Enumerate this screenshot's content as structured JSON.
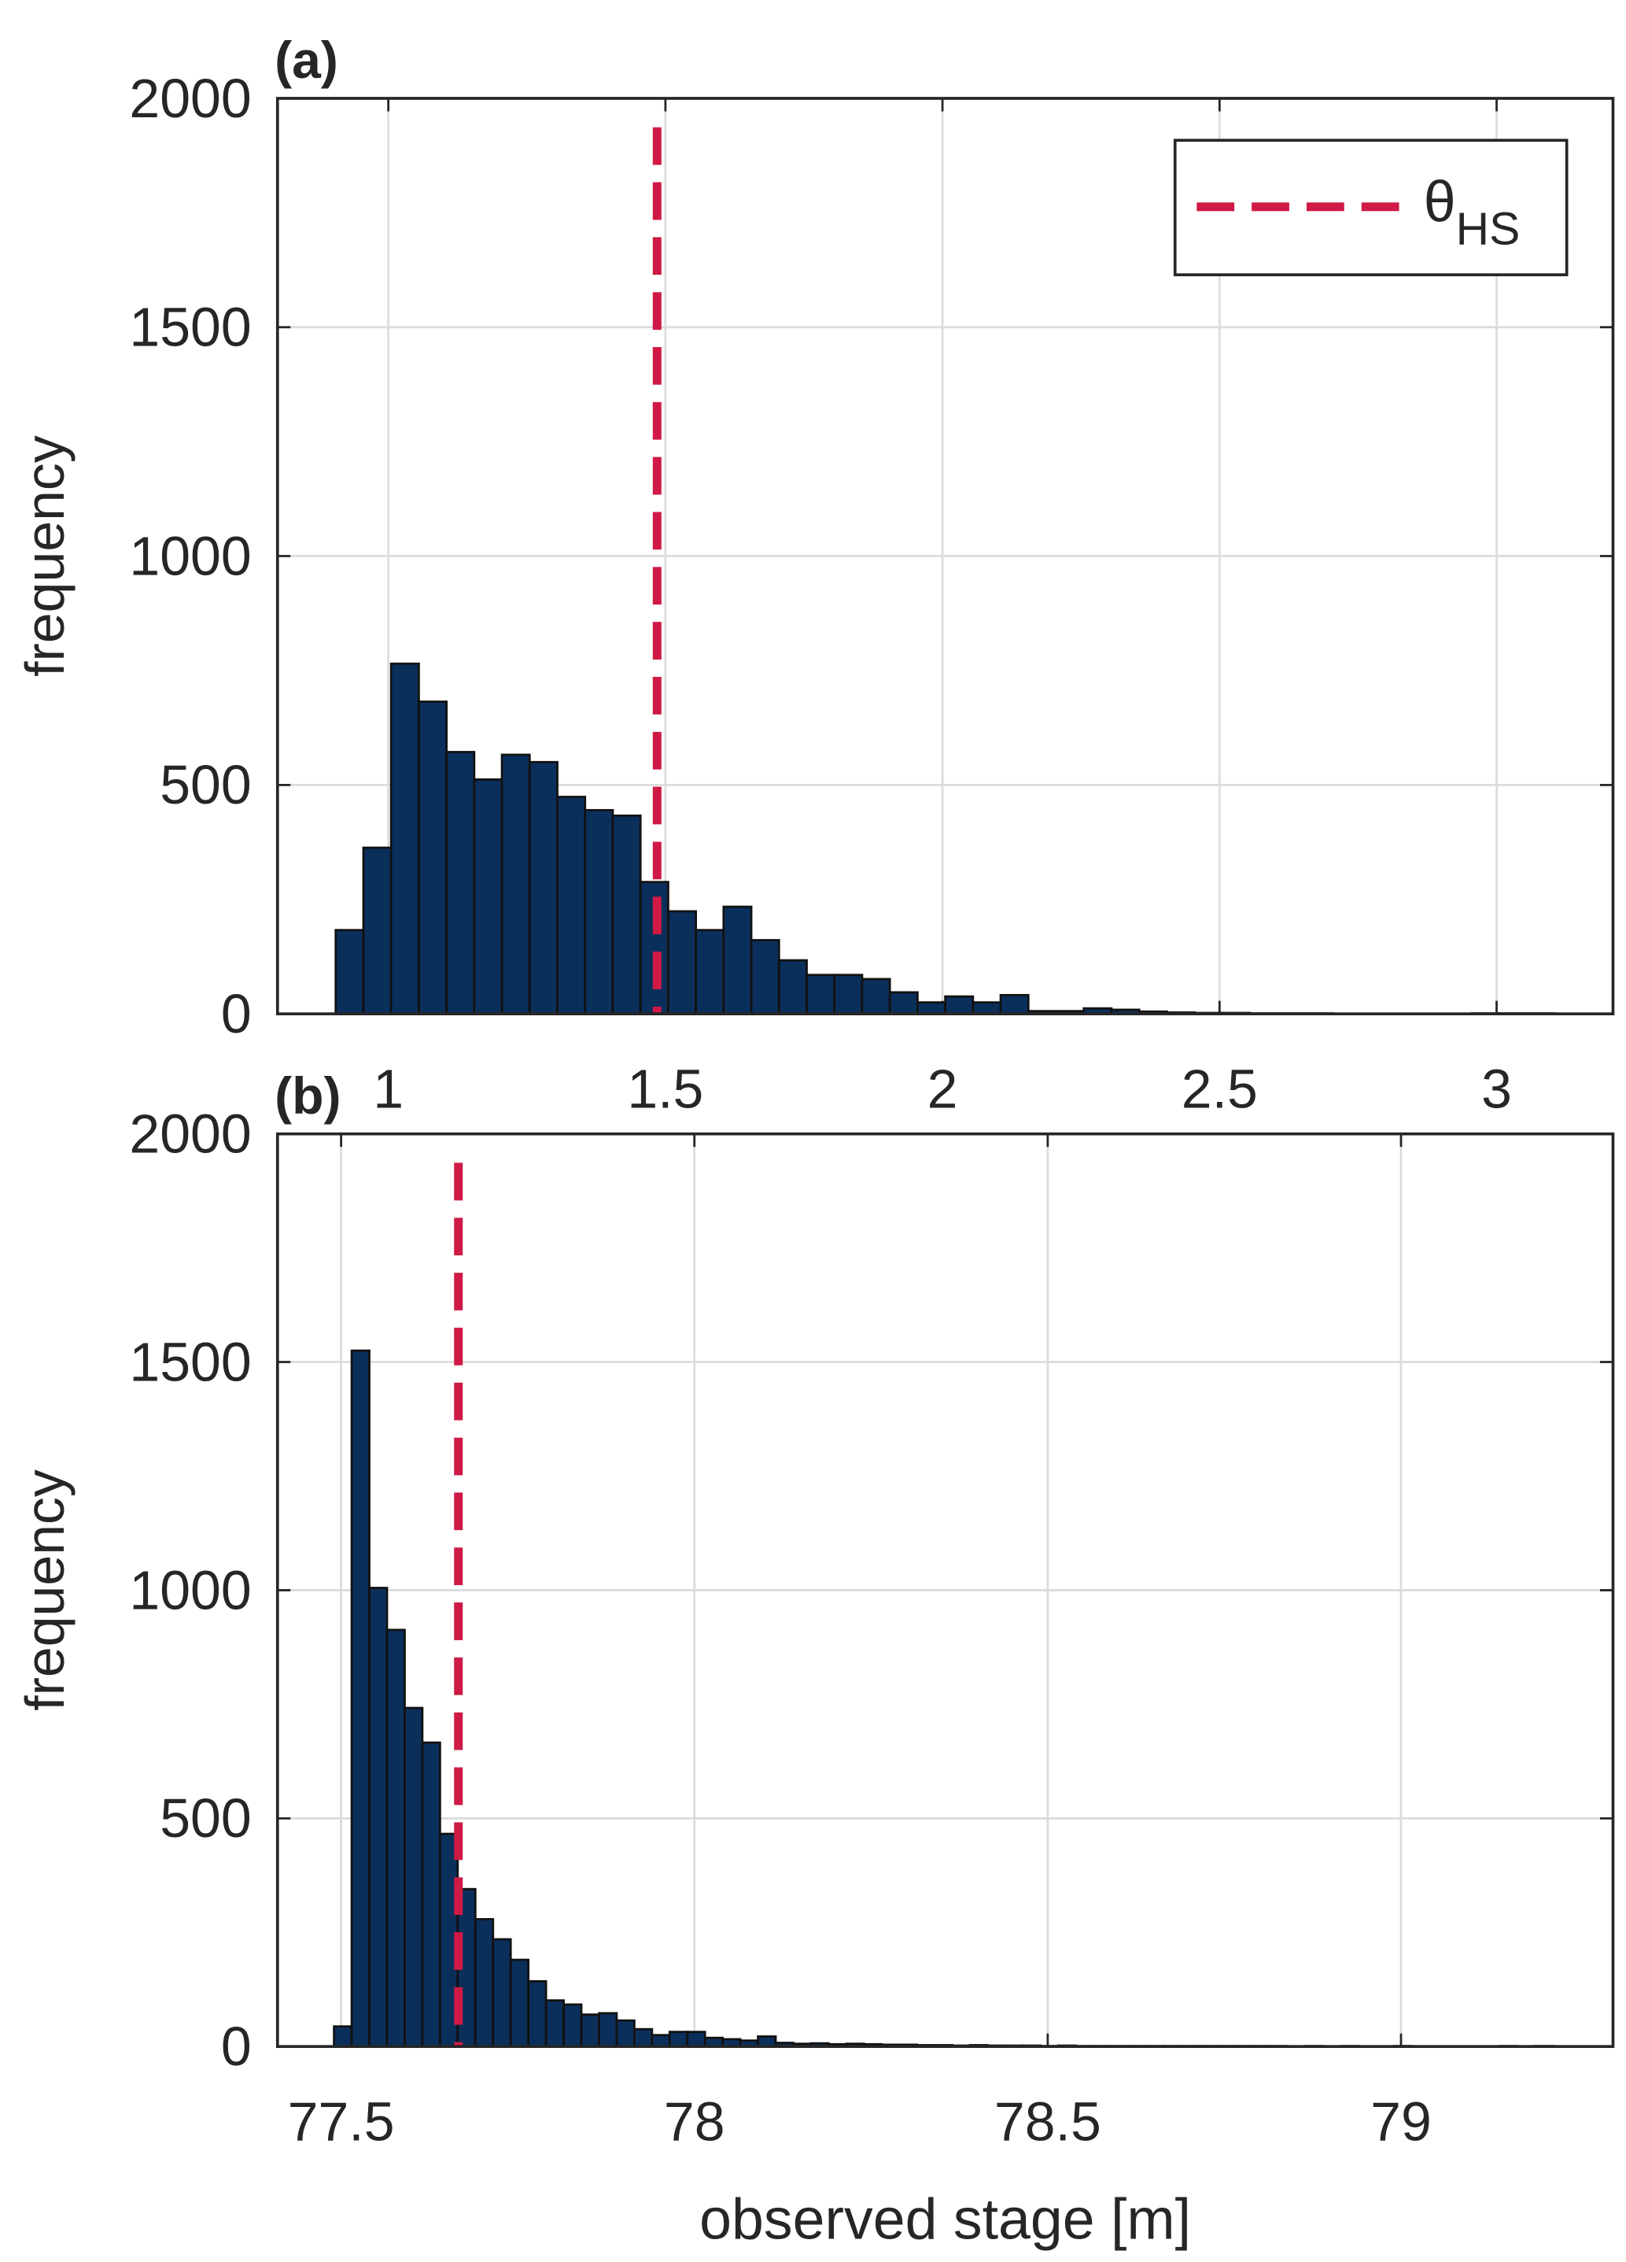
{
  "chart_data": [
    {
      "type": "histogram",
      "panel_label": "(a)",
      "ylabel": "frequency",
      "color": "#0b2f5b",
      "edge_color": "#111111",
      "bins": [
        0.905,
        0.955,
        1.005,
        1.055,
        1.105,
        1.155,
        1.205,
        1.255,
        1.305,
        1.355,
        1.405,
        1.455,
        1.505,
        1.555,
        1.605,
        1.655,
        1.705,
        1.755,
        1.805,
        1.855,
        1.905,
        1.955,
        2.005,
        2.055,
        2.105,
        2.155,
        2.205,
        2.255,
        2.305,
        2.355,
        2.405,
        2.455,
        2.505,
        2.555,
        2.605,
        2.655,
        2.705,
        2.755,
        2.805,
        2.855,
        2.905,
        2.955,
        3.005,
        3.055,
        3.105
      ],
      "values": [
        183,
        363,
        765,
        682,
        572,
        512,
        566,
        550,
        474,
        445,
        433,
        288,
        224,
        183,
        234,
        161,
        117,
        85,
        85,
        76,
        47,
        25,
        38,
        25,
        41,
        6,
        6,
        12,
        9,
        5,
        3,
        2,
        2,
        1,
        1,
        1,
        0,
        0,
        0,
        0,
        0,
        1,
        1,
        1
      ],
      "xlim": [
        0.8,
        3.21
      ],
      "ylim": [
        0,
        2000
      ],
      "xticks": [
        1,
        1.5,
        2,
        2.5,
        3
      ],
      "yticks": [
        0,
        500,
        1000,
        1500,
        2000
      ],
      "grid": true,
      "threshold": 1.485,
      "threshold_color": "#cf1a45",
      "legend": {
        "label": "θ",
        "subscript": "HS",
        "position": "upper right"
      }
    },
    {
      "type": "histogram",
      "panel_label": "(b)",
      "ylabel": "frequency",
      "xlabel": "observed stage [m]",
      "color": "#0b2f5b",
      "edge_color": "#111111",
      "bins": [
        77.49,
        77.515,
        77.54,
        77.565,
        77.59,
        77.615,
        77.64,
        77.665,
        77.69,
        77.715,
        77.74,
        77.765,
        77.79,
        77.815,
        77.84,
        77.865,
        77.89,
        77.915,
        77.94,
        77.965,
        77.99,
        78.015,
        78.04,
        78.065,
        78.09,
        78.115,
        78.14,
        78.165,
        78.19,
        78.215,
        78.24,
        78.265,
        78.29,
        78.315,
        78.34,
        78.365,
        78.39,
        78.415,
        78.44,
        78.465,
        78.49,
        78.515,
        78.54,
        78.565,
        78.59,
        78.615,
        78.64,
        78.665,
        78.69,
        78.715,
        78.74,
        78.765,
        78.79,
        78.815,
        78.84,
        78.865,
        78.89,
        78.915,
        78.94,
        78.965,
        78.99,
        79.015,
        79.04,
        79.065,
        79.09,
        79.115,
        79.14,
        79.165,
        79.19,
        79.215
      ],
      "values": [
        44,
        1525,
        1005,
        913,
        742,
        666,
        466,
        345,
        279,
        235,
        190,
        143,
        101,
        92,
        70,
        73,
        57,
        38,
        25,
        32,
        32,
        19,
        16,
        13,
        22,
        8,
        6,
        7,
        5,
        6,
        5,
        4,
        4,
        3,
        3,
        2,
        3,
        2,
        2,
        2,
        1,
        2,
        1,
        1,
        1,
        1,
        1,
        1,
        1,
        1,
        1,
        1,
        1,
        1,
        0,
        1,
        0,
        1,
        0,
        0,
        1,
        0,
        0,
        0,
        0,
        0,
        1,
        0,
        1
      ],
      "xlim": [
        77.41,
        79.3
      ],
      "ylim": [
        0,
        2000
      ],
      "xticks": [
        77.5,
        78,
        78.5,
        79
      ],
      "yticks": [
        0,
        500,
        1000,
        1500,
        2000
      ],
      "grid": true,
      "threshold": 77.666,
      "threshold_color": "#cf1a45"
    }
  ]
}
